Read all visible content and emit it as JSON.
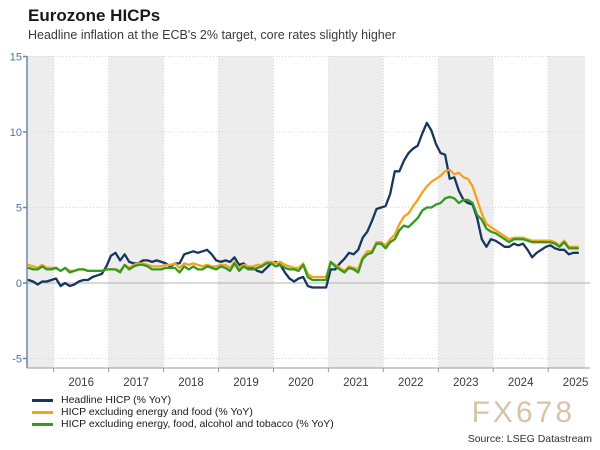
{
  "header": {
    "title": "Eurozone HICPs",
    "subtitle": "Headline inflation at the ECB's 2% target, core rates slightly higher"
  },
  "watermark": {
    "text": "FX678"
  },
  "source": {
    "text": "Source: LSEG Datastream"
  },
  "chart_data": {
    "type": "line",
    "title": "Eurozone HICPs",
    "subtitle": "Headline inflation at the ECB's 2% target, core rates slightly higher",
    "frequency": "monthly",
    "x_start": "2015-07",
    "x_end": "2025-07",
    "ylim": [
      -5,
      15
    ],
    "y_ticks": [
      -5,
      0,
      5,
      10,
      15
    ],
    "x_tick_years": [
      2016,
      2017,
      2018,
      2019,
      2020,
      2021,
      2022,
      2023,
      2024,
      2025
    ],
    "shaded_years": [
      2015,
      2017,
      2019,
      2021,
      2023,
      2025
    ],
    "grid": "dotted",
    "zero_line": true,
    "legend_position": "bottom-left",
    "style": {
      "band": "#ededed",
      "grid_dot": "#d6d6d6",
      "zero_line": "#b0b0b0",
      "y_axis": "#6e87a8",
      "y_label": "#4f74a0",
      "x_axis": "#999999",
      "x_label": "#3c3c3c",
      "watermark": "#d8c3a9"
    },
    "series": [
      {
        "name": "Headline HICP (% YoY)",
        "color": "#17365d",
        "values": [
          0.2,
          0.1,
          -0.1,
          0.1,
          0.1,
          0.2,
          0.3,
          -0.2,
          0.0,
          -0.2,
          -0.1,
          0.1,
          0.2,
          0.2,
          0.4,
          0.5,
          0.6,
          1.1,
          1.8,
          2.0,
          1.5,
          1.9,
          1.4,
          1.3,
          1.3,
          1.5,
          1.5,
          1.4,
          1.5,
          1.4,
          1.3,
          1.1,
          1.3,
          1.3,
          1.9,
          2.0,
          2.1,
          2.0,
          2.1,
          2.2,
          1.9,
          1.5,
          1.4,
          1.5,
          1.4,
          1.7,
          1.2,
          1.3,
          1.0,
          1.0,
          0.8,
          0.7,
          1.0,
          1.3,
          1.4,
          1.2,
          0.7,
          0.3,
          0.1,
          0.3,
          0.4,
          -0.2,
          -0.3,
          -0.3,
          -0.3,
          -0.3,
          0.9,
          0.9,
          1.3,
          1.6,
          2.0,
          1.9,
          2.2,
          3.0,
          3.4,
          4.1,
          4.9,
          5.0,
          5.1,
          5.9,
          7.4,
          7.4,
          8.1,
          8.6,
          8.9,
          9.1,
          9.9,
          10.6,
          10.1,
          9.2,
          8.6,
          8.5,
          6.9,
          7.0,
          6.1,
          5.5,
          5.3,
          5.2,
          4.3,
          2.9,
          2.4,
          2.9,
          2.8,
          2.6,
          2.4,
          2.4,
          2.6,
          2.5,
          2.6,
          2.2,
          1.7,
          2.0,
          2.2,
          2.4,
          2.5,
          2.3,
          2.2,
          2.2,
          1.9,
          2.0,
          2.0
        ]
      },
      {
        "name": "HICP excluding energy and food (% YoY)",
        "color": "#f7a21e",
        "values": [
          1.2,
          1.1,
          1.0,
          1.2,
          1.0,
          1.0,
          1.0,
          0.8,
          1.0,
          0.8,
          0.8,
          0.9,
          0.9,
          0.8,
          0.8,
          0.8,
          0.8,
          0.9,
          0.9,
          0.9,
          0.8,
          1.2,
          1.0,
          1.2,
          1.3,
          1.3,
          1.2,
          1.1,
          1.1,
          1.1,
          1.2,
          1.2,
          1.3,
          1.0,
          1.3,
          1.2,
          1.3,
          1.2,
          1.1,
          1.2,
          1.1,
          1.1,
          1.2,
          1.2,
          1.0,
          1.4,
          1.0,
          1.2,
          1.1,
          1.1,
          1.2,
          1.2,
          1.4,
          1.4,
          1.3,
          1.4,
          1.2,
          1.1,
          1.0,
          1.0,
          1.3,
          0.6,
          0.4,
          0.4,
          0.4,
          0.4,
          1.4,
          1.2,
          1.0,
          0.8,
          1.1,
          1.0,
          0.9,
          1.7,
          2.1,
          2.1,
          2.7,
          2.7,
          2.5,
          2.9,
          3.2,
          3.9,
          4.4,
          4.6,
          5.1,
          5.5,
          6.0,
          6.4,
          6.7,
          6.9,
          7.1,
          7.4,
          7.5,
          7.2,
          7.3,
          7.0,
          6.9,
          6.4,
          5.5,
          4.6,
          3.9,
          3.7,
          3.5,
          3.3,
          3.1,
          2.9,
          3.0,
          3.0,
          3.0,
          2.9,
          2.8,
          2.8,
          2.8,
          2.8,
          2.8,
          2.7,
          2.5,
          2.8,
          2.4,
          2.4,
          2.4
        ]
      },
      {
        "name": "HICP excluding energy, food, alcohol and tobacco (% YoY)",
        "color": "#339a1e",
        "values": [
          1.0,
          0.9,
          0.9,
          1.1,
          0.9,
          0.9,
          1.0,
          0.8,
          1.0,
          0.7,
          0.8,
          0.9,
          0.9,
          0.8,
          0.8,
          0.8,
          0.8,
          0.9,
          0.9,
          0.9,
          0.7,
          1.2,
          0.9,
          1.1,
          1.2,
          1.2,
          1.1,
          0.9,
          0.9,
          0.9,
          1.0,
          1.0,
          1.0,
          0.7,
          1.1,
          0.9,
          1.1,
          0.9,
          0.9,
          1.1,
          1.0,
          0.9,
          1.1,
          1.0,
          0.8,
          1.3,
          0.8,
          1.1,
          0.9,
          0.9,
          1.0,
          1.1,
          1.3,
          1.3,
          1.1,
          1.2,
          1.0,
          0.9,
          0.9,
          0.8,
          1.2,
          0.4,
          0.2,
          0.2,
          0.2,
          0.2,
          1.4,
          1.1,
          0.9,
          0.7,
          1.0,
          0.9,
          0.7,
          1.6,
          1.9,
          2.0,
          2.6,
          2.6,
          2.3,
          2.7,
          2.9,
          3.5,
          3.8,
          3.7,
          4.0,
          4.3,
          4.8,
          5.0,
          5.0,
          5.2,
          5.3,
          5.6,
          5.7,
          5.6,
          5.3,
          5.5,
          5.5,
          5.3,
          4.5,
          4.2,
          3.6,
          3.4,
          3.3,
          3.1,
          2.9,
          2.7,
          2.9,
          2.9,
          2.9,
          2.8,
          2.7,
          2.7,
          2.7,
          2.7,
          2.7,
          2.6,
          2.4,
          2.7,
          2.3,
          2.3,
          2.3
        ]
      }
    ]
  }
}
